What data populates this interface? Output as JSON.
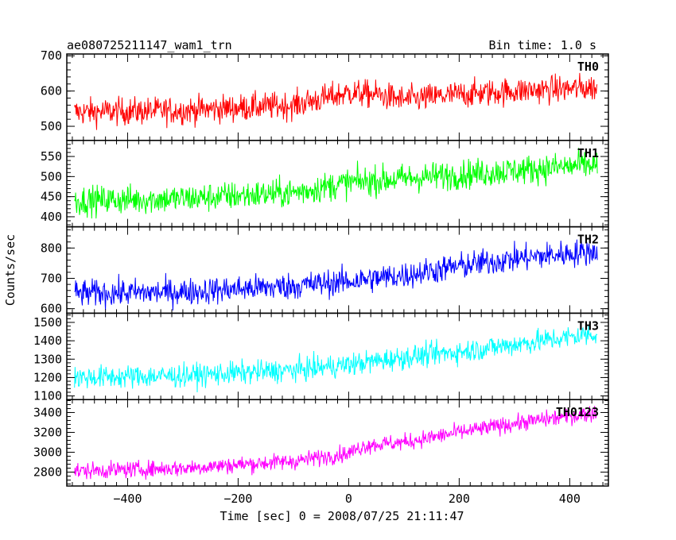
{
  "header": {
    "title": "ae080725211147_wam1_trn",
    "bin_time": "Bin time: 1.0 s"
  },
  "chart_data": {
    "type": "line",
    "xlabel": "Time [sec] 0 = 2008/07/25 21:11:47",
    "ylabel": "Counts/sec",
    "xlim": [
      -510,
      470
    ],
    "x_ticks": [
      -400,
      -200,
      0,
      200,
      400
    ],
    "x_start": -496,
    "x_end": 450,
    "panels": [
      {
        "name": "TH0",
        "color": "#ff0000",
        "ylim": [
          460,
          705
        ],
        "y_ticks": [
          500,
          600,
          700
        ],
        "trend": [
          [
            -496,
            540
          ],
          [
            -300,
            545
          ],
          [
            -100,
            560
          ],
          [
            0,
            595
          ],
          [
            50,
            590
          ],
          [
            100,
            575
          ],
          [
            200,
            590
          ],
          [
            300,
            600
          ],
          [
            450,
            610
          ]
        ],
        "noise": 28
      },
      {
        "name": "TH1",
        "color": "#00ff00",
        "ylim": [
          375,
          590
        ],
        "y_ticks": [
          400,
          450,
          500,
          550
        ],
        "trend": [
          [
            -496,
            440
          ],
          [
            -300,
            445
          ],
          [
            -100,
            460
          ],
          [
            0,
            485
          ],
          [
            100,
            495
          ],
          [
            200,
            505
          ],
          [
            300,
            515
          ],
          [
            450,
            530
          ]
        ],
        "noise": 26
      },
      {
        "name": "TH2",
        "color": "#0000ff",
        "ylim": [
          585,
          870
        ],
        "y_ticks": [
          600,
          700,
          800
        ],
        "trend": [
          [
            -496,
            650
          ],
          [
            -300,
            655
          ],
          [
            -100,
            675
          ],
          [
            0,
            690
          ],
          [
            100,
            710
          ],
          [
            200,
            740
          ],
          [
            300,
            765
          ],
          [
            450,
            790
          ]
        ],
        "noise": 32
      },
      {
        "name": "TH3",
        "color": "#00ffff",
        "ylim": [
          1080,
          1550
        ],
        "y_ticks": [
          1100,
          1200,
          1300,
          1400,
          1500
        ],
        "trend": [
          [
            -496,
            1200
          ],
          [
            -300,
            1210
          ],
          [
            -100,
            1240
          ],
          [
            0,
            1270
          ],
          [
            100,
            1310
          ],
          [
            200,
            1340
          ],
          [
            300,
            1380
          ],
          [
            450,
            1440
          ]
        ],
        "noise": 45
      },
      {
        "name": "TH0123",
        "color": "#ff00ff",
        "ylim": [
          2660,
          3530
        ],
        "y_ticks": [
          2800,
          3000,
          3200,
          3400
        ],
        "trend": [
          [
            -496,
            2810
          ],
          [
            -300,
            2840
          ],
          [
            -100,
            2910
          ],
          [
            0,
            2990
          ],
          [
            30,
            3070
          ],
          [
            100,
            3100
          ],
          [
            200,
            3200
          ],
          [
            300,
            3290
          ],
          [
            450,
            3400
          ]
        ],
        "noise": 60
      }
    ]
  }
}
